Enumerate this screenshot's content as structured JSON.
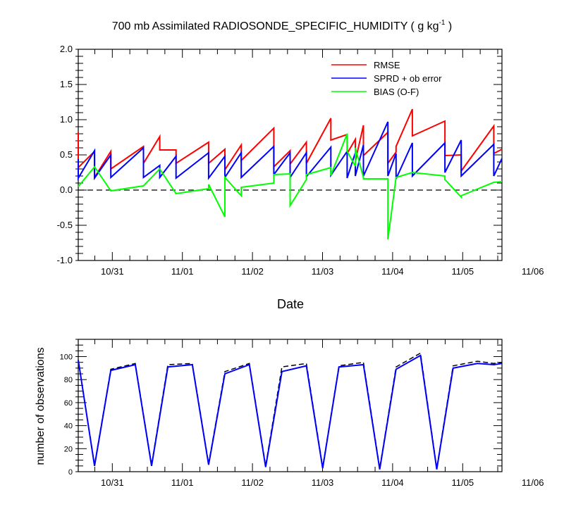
{
  "chart_data": [
    {
      "type": "line",
      "title": "700 mb Assimilated RADIOSONDE_SPECIFIC_HUMIDITY ( g kg",
      "title_sup": "-1",
      "title_end": " )",
      "xlabel": "Date",
      "ylabel": "",
      "x_ticks": [
        "10/31",
        "11/01",
        "11/02",
        "11/03",
        "11/04",
        "11/05",
        "11/06"
      ],
      "y_ticks": [
        "-1.0",
        "-0.5",
        "0.0",
        "0.5",
        "1.0",
        "1.5",
        "2.0"
      ],
      "ylim": [
        -1.0,
        2.0
      ],
      "xlim": [
        0,
        52
      ],
      "grid": false,
      "zero_line": "dashed",
      "legend": "top-right",
      "series": [
        {
          "name": "RMSE",
          "color": "#ff0000",
          "x": [
            0,
            0,
            2,
            2,
            4,
            4,
            8,
            8,
            10,
            10,
            12,
            12,
            16,
            16,
            18,
            18,
            20,
            20,
            24,
            24,
            26,
            26,
            28,
            28,
            31,
            31,
            33,
            33,
            34,
            34,
            35,
            35,
            38,
            38,
            39,
            39,
            41,
            41,
            45,
            45,
            47,
            47,
            51,
            51,
            52
          ],
          "y": [
            0.82,
            0.32,
            0.55,
            0.18,
            0.55,
            0.3,
            0.62,
            0.38,
            0.76,
            0.57,
            0.57,
            0.38,
            0.68,
            0.38,
            0.58,
            0.29,
            0.64,
            0.42,
            0.88,
            0.33,
            0.56,
            0.37,
            0.68,
            0.38,
            1.02,
            0.71,
            0.79,
            0.52,
            0.72,
            0.41,
            0.92,
            0.49,
            0.82,
            0.38,
            0.54,
            0.62,
            1.15,
            0.77,
            0.98,
            0.49,
            0.5,
            0.27,
            0.91,
            0.52,
            0.58
          ]
        },
        {
          "name": "SPRD + ob error",
          "color": "#0000ff",
          "x": [
            0,
            0,
            2,
            2,
            4,
            4,
            8,
            8,
            10,
            10,
            12,
            12,
            16,
            16,
            18,
            18,
            20,
            20,
            24,
            24,
            26,
            26,
            28,
            28,
            31,
            31,
            33,
            33,
            34,
            34,
            35,
            35,
            38,
            38,
            39,
            39,
            41,
            41,
            45,
            45,
            47,
            47,
            51,
            51,
            52
          ],
          "y": [
            0.44,
            0.17,
            0.56,
            0.17,
            0.5,
            0.18,
            0.6,
            0.18,
            0.35,
            0.18,
            0.48,
            0.17,
            0.53,
            0.17,
            0.48,
            0.18,
            0.53,
            0.18,
            0.62,
            0.22,
            0.53,
            0.18,
            0.53,
            0.19,
            0.61,
            0.21,
            0.55,
            0.17,
            0.53,
            0.2,
            0.64,
            0.2,
            0.97,
            0.2,
            0.52,
            0.16,
            0.67,
            0.2,
            0.67,
            0.25,
            0.71,
            0.2,
            0.65,
            0.2,
            0.45
          ]
        },
        {
          "name": "BIAS (O-F)",
          "color": "#00ff00",
          "x": [
            0,
            2,
            4,
            8,
            10,
            12,
            16,
            16,
            18,
            18,
            20,
            20,
            24,
            24,
            26,
            26,
            28,
            28,
            31,
            31,
            33,
            33,
            34,
            34,
            35,
            35,
            38,
            38,
            39,
            39,
            41,
            41,
            45,
            45,
            47,
            47,
            51,
            51,
            52
          ],
          "y": [
            0.05,
            0.33,
            -0.01,
            0.06,
            0.3,
            -0.05,
            0.02,
            0.08,
            -0.38,
            0.18,
            -0.08,
            0.04,
            0.1,
            0.22,
            0.23,
            -0.22,
            0.15,
            0.22,
            0.32,
            0.21,
            0.8,
            0.55,
            0.34,
            0.6,
            0.18,
            0.16,
            0.16,
            -0.7,
            0.18,
            0.18,
            0.25,
            0.25,
            0.2,
            0.15,
            -0.1,
            -0.08,
            0.11,
            0.11,
            0.12
          ]
        }
      ]
    },
    {
      "type": "line",
      "title": "",
      "xlabel": "",
      "ylabel": "number of observations",
      "x_ticks": [
        "10/31",
        "11/01",
        "11/02",
        "11/03",
        "11/04",
        "11/05",
        "11/06"
      ],
      "y_ticks": [
        "0",
        "20",
        "40",
        "60",
        "80",
        "100"
      ],
      "ylim": [
        0,
        115
      ],
      "xlim": [
        0,
        52
      ],
      "grid": false,
      "series": [
        {
          "name": "",
          "style": "dashed",
          "color": "#000000",
          "x": [
            0,
            2,
            4,
            7,
            9,
            11,
            14,
            16,
            18,
            21,
            23,
            25,
            28,
            30,
            32,
            35,
            37,
            39,
            42,
            44,
            46,
            49,
            51,
            52
          ],
          "y": [
            97,
            6,
            89,
            94,
            6,
            93,
            94,
            7,
            87,
            94,
            5,
            91,
            94,
            4,
            92,
            95,
            3,
            91,
            103,
            3,
            92,
            96,
            94,
            95
          ]
        },
        {
          "name": "",
          "style": "solid",
          "color": "#0000ff",
          "x": [
            0,
            2,
            4,
            7,
            9,
            11,
            14,
            16,
            18,
            21,
            23,
            25,
            28,
            30,
            32,
            35,
            37,
            39,
            42,
            44,
            46,
            49,
            51,
            52
          ],
          "y": [
            97,
            5,
            88,
            93,
            5,
            91,
            93,
            6,
            85,
            93,
            4,
            87,
            92,
            3,
            91,
            93,
            2,
            89,
            101,
            2,
            90,
            94,
            93,
            94
          ]
        }
      ]
    }
  ]
}
